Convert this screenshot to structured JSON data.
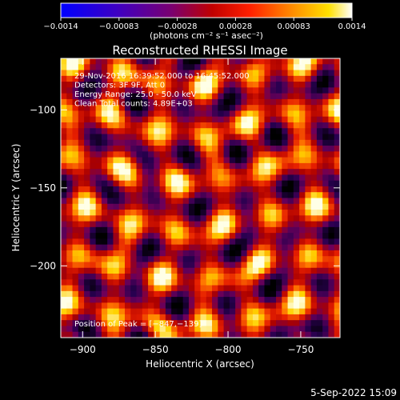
{
  "colorbar": {
    "ticks": [
      "−0.0014",
      "−0.00083",
      "−0.00028",
      "0.00028",
      "0.00083",
      "0.0014"
    ],
    "unit_label": "(photons cm⁻² s⁻¹ asec⁻²)",
    "range": [
      -0.0014,
      0.0014
    ]
  },
  "chart_data": {
    "type": "heatmap",
    "title": "Reconstructed RHESSI Image",
    "xlabel": "Heliocentric X (arcsec)",
    "ylabel": "Heliocentric Y (arcsec)",
    "xlim": [
      -915,
      -723
    ],
    "ylim": [
      -246,
      -67
    ],
    "xticks": [
      -900,
      -850,
      -800,
      -750
    ],
    "xtick_labels": [
      "−900",
      "−850",
      "−800",
      "−750"
    ],
    "yticks": [
      -100,
      -150,
      -200
    ],
    "ytick_labels": [
      "−100",
      "−150",
      "−200"
    ],
    "colormap": "rhessi-heat (blue–purple–red–orange–yellow–white)",
    "pattern": "fringe / ring-like noise pattern filling the field",
    "annotations": [
      "29-Nov-2016 16:39:52.000 to 16:45:52.000",
      "Detectors: 3F 9F, Att 0",
      "Energy Range: 25.0 - 50.0 keV",
      "Clean    Total counts: 4.89E+03"
    ],
    "peak_annotation": "Position of Peak = [−847,−139]"
  },
  "footer": {
    "date": "5-Sep-2022 15:09"
  }
}
